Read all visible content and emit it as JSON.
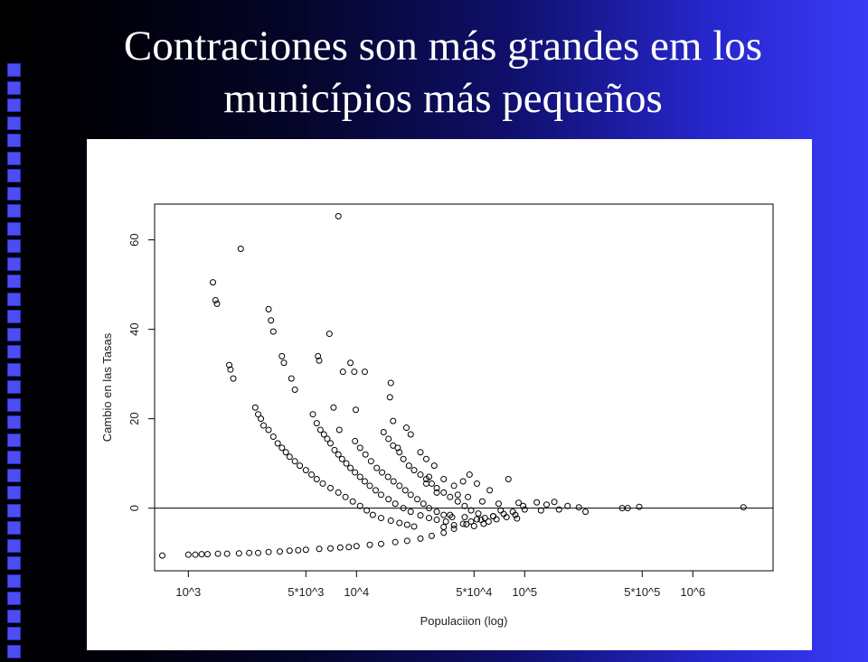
{
  "slide": {
    "title_line1": "Contraciones son más grandes em los",
    "title_line2": "municípios más pequeños"
  },
  "chart_data": {
    "type": "scatter",
    "title": "",
    "xlabel": "Populaciion (log)",
    "ylabel": "Cambio en las Tasas",
    "x_scale": "log",
    "xlim": [
      630,
      3000000
    ],
    "ylim": [
      -14,
      68
    ],
    "x_ticks": [
      {
        "value": 1000,
        "label": "10^3"
      },
      {
        "value": 5000,
        "label": "5*10^3"
      },
      {
        "value": 10000,
        "label": "10^4"
      },
      {
        "value": 50000,
        "label": "5*10^4"
      },
      {
        "value": 100000,
        "label": "10^5"
      },
      {
        "value": 500000,
        "label": "5*10^5"
      },
      {
        "value": 1000000,
        "label": "10^6"
      }
    ],
    "y_ticks": [
      0,
      20,
      40,
      60
    ],
    "reference_line_y": 0,
    "grid": false,
    "legend": "none",
    "marker": "open-circle",
    "points": [
      [
        700,
        -10.6
      ],
      [
        1000,
        -10.4
      ],
      [
        1100,
        -10.4
      ],
      [
        1200,
        -10.3
      ],
      [
        1300,
        -10.3
      ],
      [
        1500,
        -10.2
      ],
      [
        1700,
        -10.2
      ],
      [
        2000,
        -10.1
      ],
      [
        2300,
        -10.0
      ],
      [
        2600,
        -10.0
      ],
      [
        3000,
        -9.8
      ],
      [
        3500,
        -9.7
      ],
      [
        4000,
        -9.5
      ],
      [
        4500,
        -9.4
      ],
      [
        5000,
        -9.3
      ],
      [
        6000,
        -9.1
      ],
      [
        7000,
        -9.0
      ],
      [
        8000,
        -8.8
      ],
      [
        9000,
        -8.7
      ],
      [
        10000,
        -8.5
      ],
      [
        12000,
        -8.2
      ],
      [
        14000,
        -8.0
      ],
      [
        17000,
        -7.6
      ],
      [
        20000,
        -7.3
      ],
      [
        24000,
        -6.8
      ],
      [
        28000,
        -6.2
      ],
      [
        33000,
        -5.5
      ],
      [
        38000,
        -4.6
      ],
      [
        45000,
        -3.6
      ],
      [
        55000,
        -2.6
      ],
      [
        65000,
        -1.8
      ],
      [
        2500,
        22.5
      ],
      [
        2600,
        21.0
      ],
      [
        2700,
        20.0
      ],
      [
        2800,
        18.5
      ],
      [
        3000,
        17.5
      ],
      [
        3200,
        16.0
      ],
      [
        3400,
        14.5
      ],
      [
        3600,
        13.5
      ],
      [
        3800,
        12.5
      ],
      [
        4000,
        11.5
      ],
      [
        4300,
        10.5
      ],
      [
        4600,
        9.5
      ],
      [
        5000,
        8.5
      ],
      [
        5400,
        7.5
      ],
      [
        5800,
        6.5
      ],
      [
        6300,
        5.5
      ],
      [
        7000,
        4.5
      ],
      [
        7800,
        3.5
      ],
      [
        8600,
        2.5
      ],
      [
        9500,
        1.5
      ],
      [
        10500,
        0.5
      ],
      [
        11500,
        -0.5
      ],
      [
        12500,
        -1.5
      ],
      [
        14000,
        -2.2
      ],
      [
        16000,
        -2.8
      ],
      [
        18000,
        -3.3
      ],
      [
        20000,
        -3.7
      ],
      [
        22000,
        -4.1
      ],
      [
        5500,
        21.0
      ],
      [
        5800,
        19.0
      ],
      [
        6100,
        17.5
      ],
      [
        6400,
        16.5
      ],
      [
        6700,
        15.5
      ],
      [
        7000,
        14.5
      ],
      [
        7400,
        13.0
      ],
      [
        7800,
        12.0
      ],
      [
        8200,
        11.0
      ],
      [
        8700,
        10.0
      ],
      [
        9200,
        9.0
      ],
      [
        9800,
        8.0
      ],
      [
        10500,
        7.0
      ],
      [
        11200,
        6.0
      ],
      [
        12000,
        5.0
      ],
      [
        13000,
        4.0
      ],
      [
        14000,
        3.0
      ],
      [
        15500,
        2.0
      ],
      [
        17000,
        1.0
      ],
      [
        19000,
        0.0
      ],
      [
        21000,
        -0.8
      ],
      [
        24000,
        -1.6
      ],
      [
        27000,
        -2.2
      ],
      [
        30000,
        -2.6
      ],
      [
        34000,
        -3.0
      ],
      [
        9800,
        15.0
      ],
      [
        10500,
        13.5
      ],
      [
        11300,
        12.0
      ],
      [
        12200,
        10.5
      ],
      [
        13200,
        9.0
      ],
      [
        14200,
        8.0
      ],
      [
        15400,
        7.0
      ],
      [
        16600,
        6.0
      ],
      [
        18000,
        5.0
      ],
      [
        19500,
        4.0
      ],
      [
        21000,
        3.0
      ],
      [
        23000,
        2.0
      ],
      [
        25000,
        1.0
      ],
      [
        27000,
        0.0
      ],
      [
        30000,
        -0.8
      ],
      [
        33000,
        -1.5
      ],
      [
        37000,
        -2.0
      ],
      [
        14500,
        17.0
      ],
      [
        15500,
        15.5
      ],
      [
        16500,
        14.0
      ],
      [
        18000,
        12.5
      ],
      [
        19000,
        11.0
      ],
      [
        20500,
        9.5
      ],
      [
        22000,
        8.5
      ],
      [
        24000,
        7.5
      ],
      [
        26000,
        6.5
      ],
      [
        28000,
        5.5
      ],
      [
        30000,
        4.5
      ],
      [
        33000,
        3.5
      ],
      [
        36000,
        2.5
      ],
      [
        40000,
        1.5
      ],
      [
        44000,
        0.5
      ],
      [
        48000,
        -0.5
      ],
      [
        53000,
        -1.2
      ],
      [
        1400,
        50.5
      ],
      [
        1450,
        46.5
      ],
      [
        1480,
        45.7
      ],
      [
        2050,
        58.0
      ],
      [
        1750,
        32.0
      ],
      [
        1780,
        31.0
      ],
      [
        1850,
        29.0
      ],
      [
        3000,
        44.5
      ],
      [
        3100,
        42.0
      ],
      [
        3200,
        39.5
      ],
      [
        3600,
        34.0
      ],
      [
        3700,
        32.5
      ],
      [
        4100,
        29.0
      ],
      [
        4300,
        26.5
      ],
      [
        5900,
        34.0
      ],
      [
        6000,
        33.0
      ],
      [
        6900,
        39.0
      ],
      [
        7800,
        65.3
      ],
      [
        8300,
        30.5
      ],
      [
        9200,
        32.5
      ],
      [
        9700,
        30.5
      ],
      [
        9900,
        22.0
      ],
      [
        11200,
        30.5
      ],
      [
        7300,
        22.5
      ],
      [
        7900,
        17.5
      ],
      [
        16000,
        28.0
      ],
      [
        15800,
        24.8
      ],
      [
        16500,
        19.5
      ],
      [
        19800,
        18.0
      ],
      [
        21000,
        16.5
      ],
      [
        17600,
        13.5
      ],
      [
        24000,
        12.5
      ],
      [
        26000,
        11.0
      ],
      [
        29000,
        9.5
      ],
      [
        27000,
        7.0
      ],
      [
        26000,
        5.5
      ],
      [
        33000,
        6.5
      ],
      [
        30000,
        3.5
      ],
      [
        38000,
        5.0
      ],
      [
        43000,
        6.0
      ],
      [
        47000,
        7.5
      ],
      [
        40000,
        3.0
      ],
      [
        52000,
        5.5
      ],
      [
        46000,
        2.5
      ],
      [
        62000,
        4.0
      ],
      [
        80000,
        6.5
      ],
      [
        56000,
        1.5
      ],
      [
        70000,
        1.0
      ],
      [
        92000,
        1.2
      ],
      [
        118000,
        1.3
      ],
      [
        150000,
        1.4
      ],
      [
        135000,
        0.8
      ],
      [
        180000,
        0.5
      ],
      [
        125000,
        -0.5
      ],
      [
        160000,
        -0.3
      ],
      [
        210000,
        0.2
      ],
      [
        230000,
        -0.8
      ],
      [
        380000,
        0.0
      ],
      [
        410000,
        0.0
      ],
      [
        480000,
        0.3
      ],
      [
        2000000,
        0.2
      ],
      [
        100000,
        -0.3
      ],
      [
        85000,
        -0.8
      ],
      [
        75000,
        -1.3
      ],
      [
        65000,
        -1.8
      ],
      [
        58000,
        -2.2
      ],
      [
        52000,
        -2.5
      ],
      [
        48000,
        -3.0
      ],
      [
        43000,
        -3.5
      ],
      [
        38000,
        -3.8
      ],
      [
        33000,
        -4.2
      ],
      [
        44000,
        -2.0
      ],
      [
        36000,
        -1.5
      ],
      [
        68000,
        -2.5
      ],
      [
        78000,
        -2.0
      ],
      [
        88000,
        -1.5
      ],
      [
        57000,
        -3.5
      ],
      [
        61000,
        -3.0
      ],
      [
        90000,
        -2.3
      ],
      [
        50000,
        -4.0
      ],
      [
        72000,
        -0.5
      ],
      [
        98000,
        0.5
      ]
    ]
  }
}
